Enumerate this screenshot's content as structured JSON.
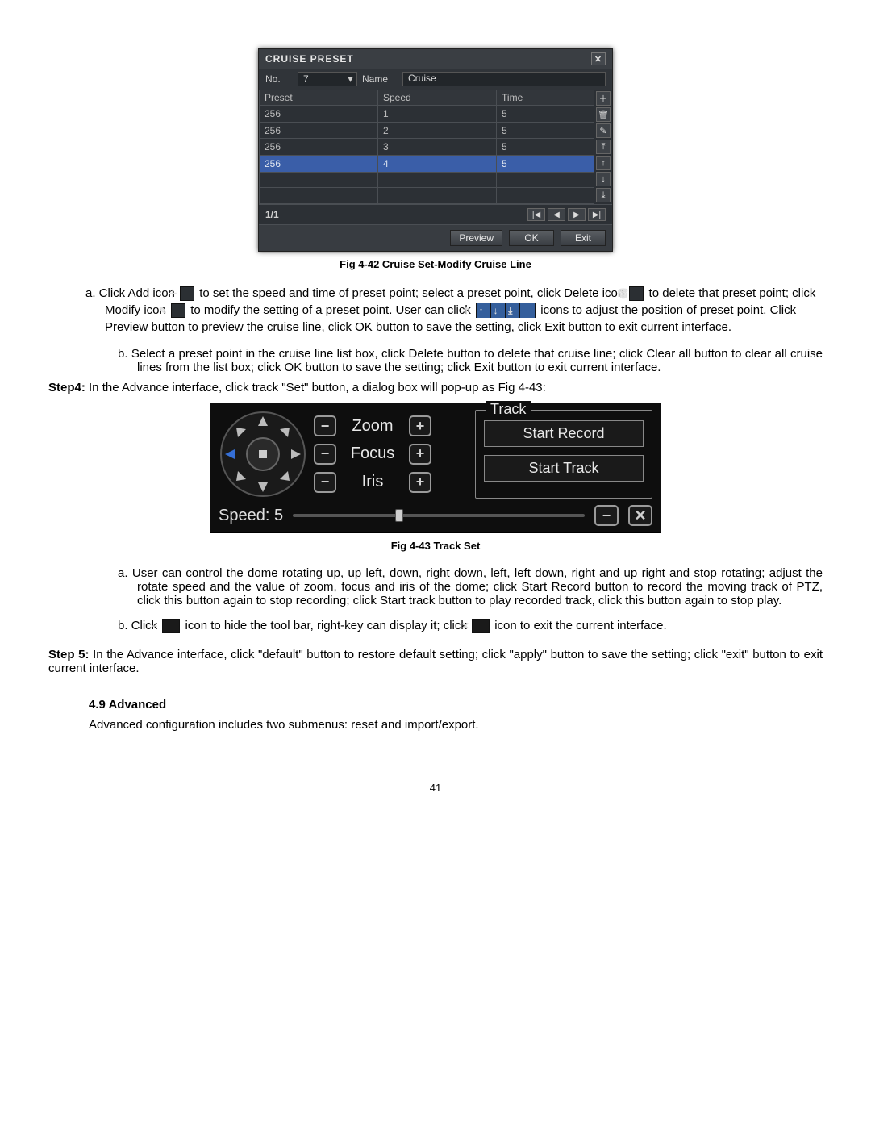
{
  "cruise": {
    "title": "CRUISE PRESET",
    "no_label": "No.",
    "no_value": "7",
    "name_label": "Name",
    "name_value": "Cruise",
    "columns": [
      "Preset",
      "Speed",
      "Time"
    ],
    "rows": [
      {
        "preset": "256",
        "speed": "1",
        "time": "5"
      },
      {
        "preset": "256",
        "speed": "2",
        "time": "5"
      },
      {
        "preset": "256",
        "speed": "3",
        "time": "5"
      },
      {
        "preset": "256",
        "speed": "4",
        "time": "5"
      }
    ],
    "selected_row_index": 3,
    "page_label": "1/1",
    "buttons": {
      "preview": "Preview",
      "ok": "OK",
      "exit": "Exit"
    },
    "side_icons": [
      "plus",
      "trash",
      "pencil",
      "arrow-top",
      "arrow-up",
      "arrow-down",
      "arrow-bottom"
    ],
    "pager_icons": [
      "first",
      "prev",
      "next",
      "last"
    ]
  },
  "fig42_caption": "Fig 4-42 Cruise Set-Modify Cruise Line",
  "fig43_caption": "Fig 4-43 Track Set",
  "text": {
    "a1_pre": "a.   Click Add icon ",
    "a1_mid1": " to set the speed and time of preset point; select a preset point, click Delete icon ",
    "a1_mid2": " to delete that preset point; click Modify icon ",
    "a1_mid3": " to modify the setting of a preset point. User can click",
    "a1_mid4": " icons to adjust the position of preset point. Click Preview button to preview the cruise line, click OK button to save the setting, click Exit button to exit current interface.",
    "b1": "b.   Select a preset point in the cruise line list box, click Delete button to delete that cruise line; click Clear all button to clear all cruise lines from the list box; click OK button to save the setting; click Exit button to exit current interface.",
    "step4": "Step4: ",
    "step4_body": "In the Advance interface, click track \"Set\" button, a dialog box will pop-up as Fig 4-43:",
    "a2": "a.   User can control the dome rotating up, up left, down, right down, left, left down, right and up right and stop rotating; adjust the rotate speed and the value of zoom, focus and iris of the dome; click Start Record button to record the moving track of PTZ, click this button again to stop recording; click Start track button to play recorded track, click this button again to stop play.",
    "b2_pre": "b.   Click ",
    "b2_mid": " icon to hide the tool bar, right-key can display it; click ",
    "b2_post": " icon to exit the current interface.",
    "step5": "Step 5: ",
    "step5_body": "In the Advance interface, click \"default\" button to restore default setting; click \"apply\" button to save the setting; click \"exit\" button to exit current interface.",
    "sec49_head": "4.9  Advanced",
    "sec49_body": "Advanced configuration includes two submenus: reset and import/export.",
    "page_num": "41"
  },
  "track": {
    "zoom": "Zoom",
    "focus": "Focus",
    "iris": "Iris",
    "legend": "Track",
    "start_record": "Start Record",
    "start_track": "Start Track",
    "speed_label": "Speed:",
    "speed_value": "5",
    "slider_percent": 35,
    "colors": {
      "panel_bg": "#0e0e0e",
      "btn_border": "#9a9a9a",
      "text": "#e5e5e5",
      "ptz_active": "#356fd6"
    }
  }
}
